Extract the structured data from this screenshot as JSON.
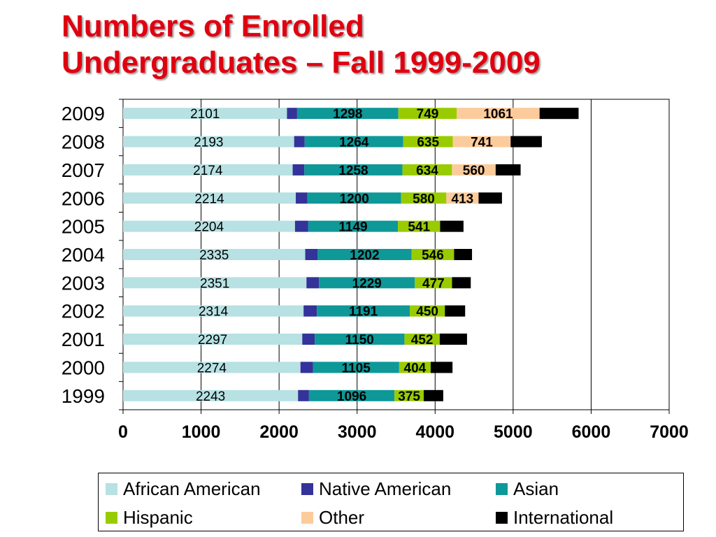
{
  "title": {
    "line1": "Numbers of Enrolled",
    "line2": "Undergraduates – Fall 1999-2009"
  },
  "chart_data": {
    "type": "bar",
    "orientation": "horizontal",
    "stacked": true,
    "categories": [
      "2009",
      "2008",
      "2007",
      "2006",
      "2005",
      "2004",
      "2003",
      "2002",
      "2001",
      "2000",
      "1999"
    ],
    "series": [
      {
        "name": "African American",
        "color": "#b7e1e3",
        "values": [
          2101,
          2193,
          2174,
          2214,
          2204,
          2335,
          2351,
          2314,
          2297,
          2274,
          2243
        ],
        "labels": [
          "2101",
          "2193",
          "2174",
          "2214",
          "2204",
          "2335",
          "2351",
          "2314",
          "2297",
          "2274",
          "2243"
        ]
      },
      {
        "name": "Native American",
        "color": "#33339a",
        "values": [
          130,
          135,
          150,
          150,
          170,
          160,
          160,
          170,
          160,
          160,
          140
        ],
        "labels": []
      },
      {
        "name": "Asian",
        "color": "#0e9898",
        "values": [
          1298,
          1264,
          1258,
          1200,
          1149,
          1202,
          1229,
          1191,
          1150,
          1105,
          1096
        ],
        "labels": [
          "1298",
          "1264",
          "1258",
          "1200",
          "1149",
          "1202",
          "1229",
          "1191",
          "1150",
          "1105",
          "1096"
        ]
      },
      {
        "name": "Hispanic",
        "color": "#99cc00",
        "values": [
          749,
          635,
          634,
          580,
          541,
          546,
          477,
          450,
          452,
          404,
          375
        ],
        "labels": [
          "749",
          "635",
          "634",
          "580",
          "541",
          "546",
          "477",
          "450",
          "452",
          "404",
          "375"
        ]
      },
      {
        "name": "Other",
        "color": "#fccb9c",
        "values": [
          1061,
          741,
          560,
          413,
          0,
          0,
          0,
          0,
          0,
          0,
          0
        ],
        "labels": [
          "1061",
          "741",
          "560",
          "413",
          "",
          "",
          "",
          "",
          "",
          "",
          ""
        ]
      },
      {
        "name": "International",
        "color": "#000000",
        "values": [
          500,
          400,
          320,
          300,
          300,
          230,
          240,
          260,
          350,
          280,
          250
        ],
        "labels": []
      }
    ],
    "xlim": [
      0,
      7000
    ],
    "xticks": [
      "0",
      "1000",
      "2000",
      "3000",
      "4000",
      "5000",
      "6000",
      "7000"
    ],
    "grid": "vertical",
    "legend": "bottom"
  }
}
